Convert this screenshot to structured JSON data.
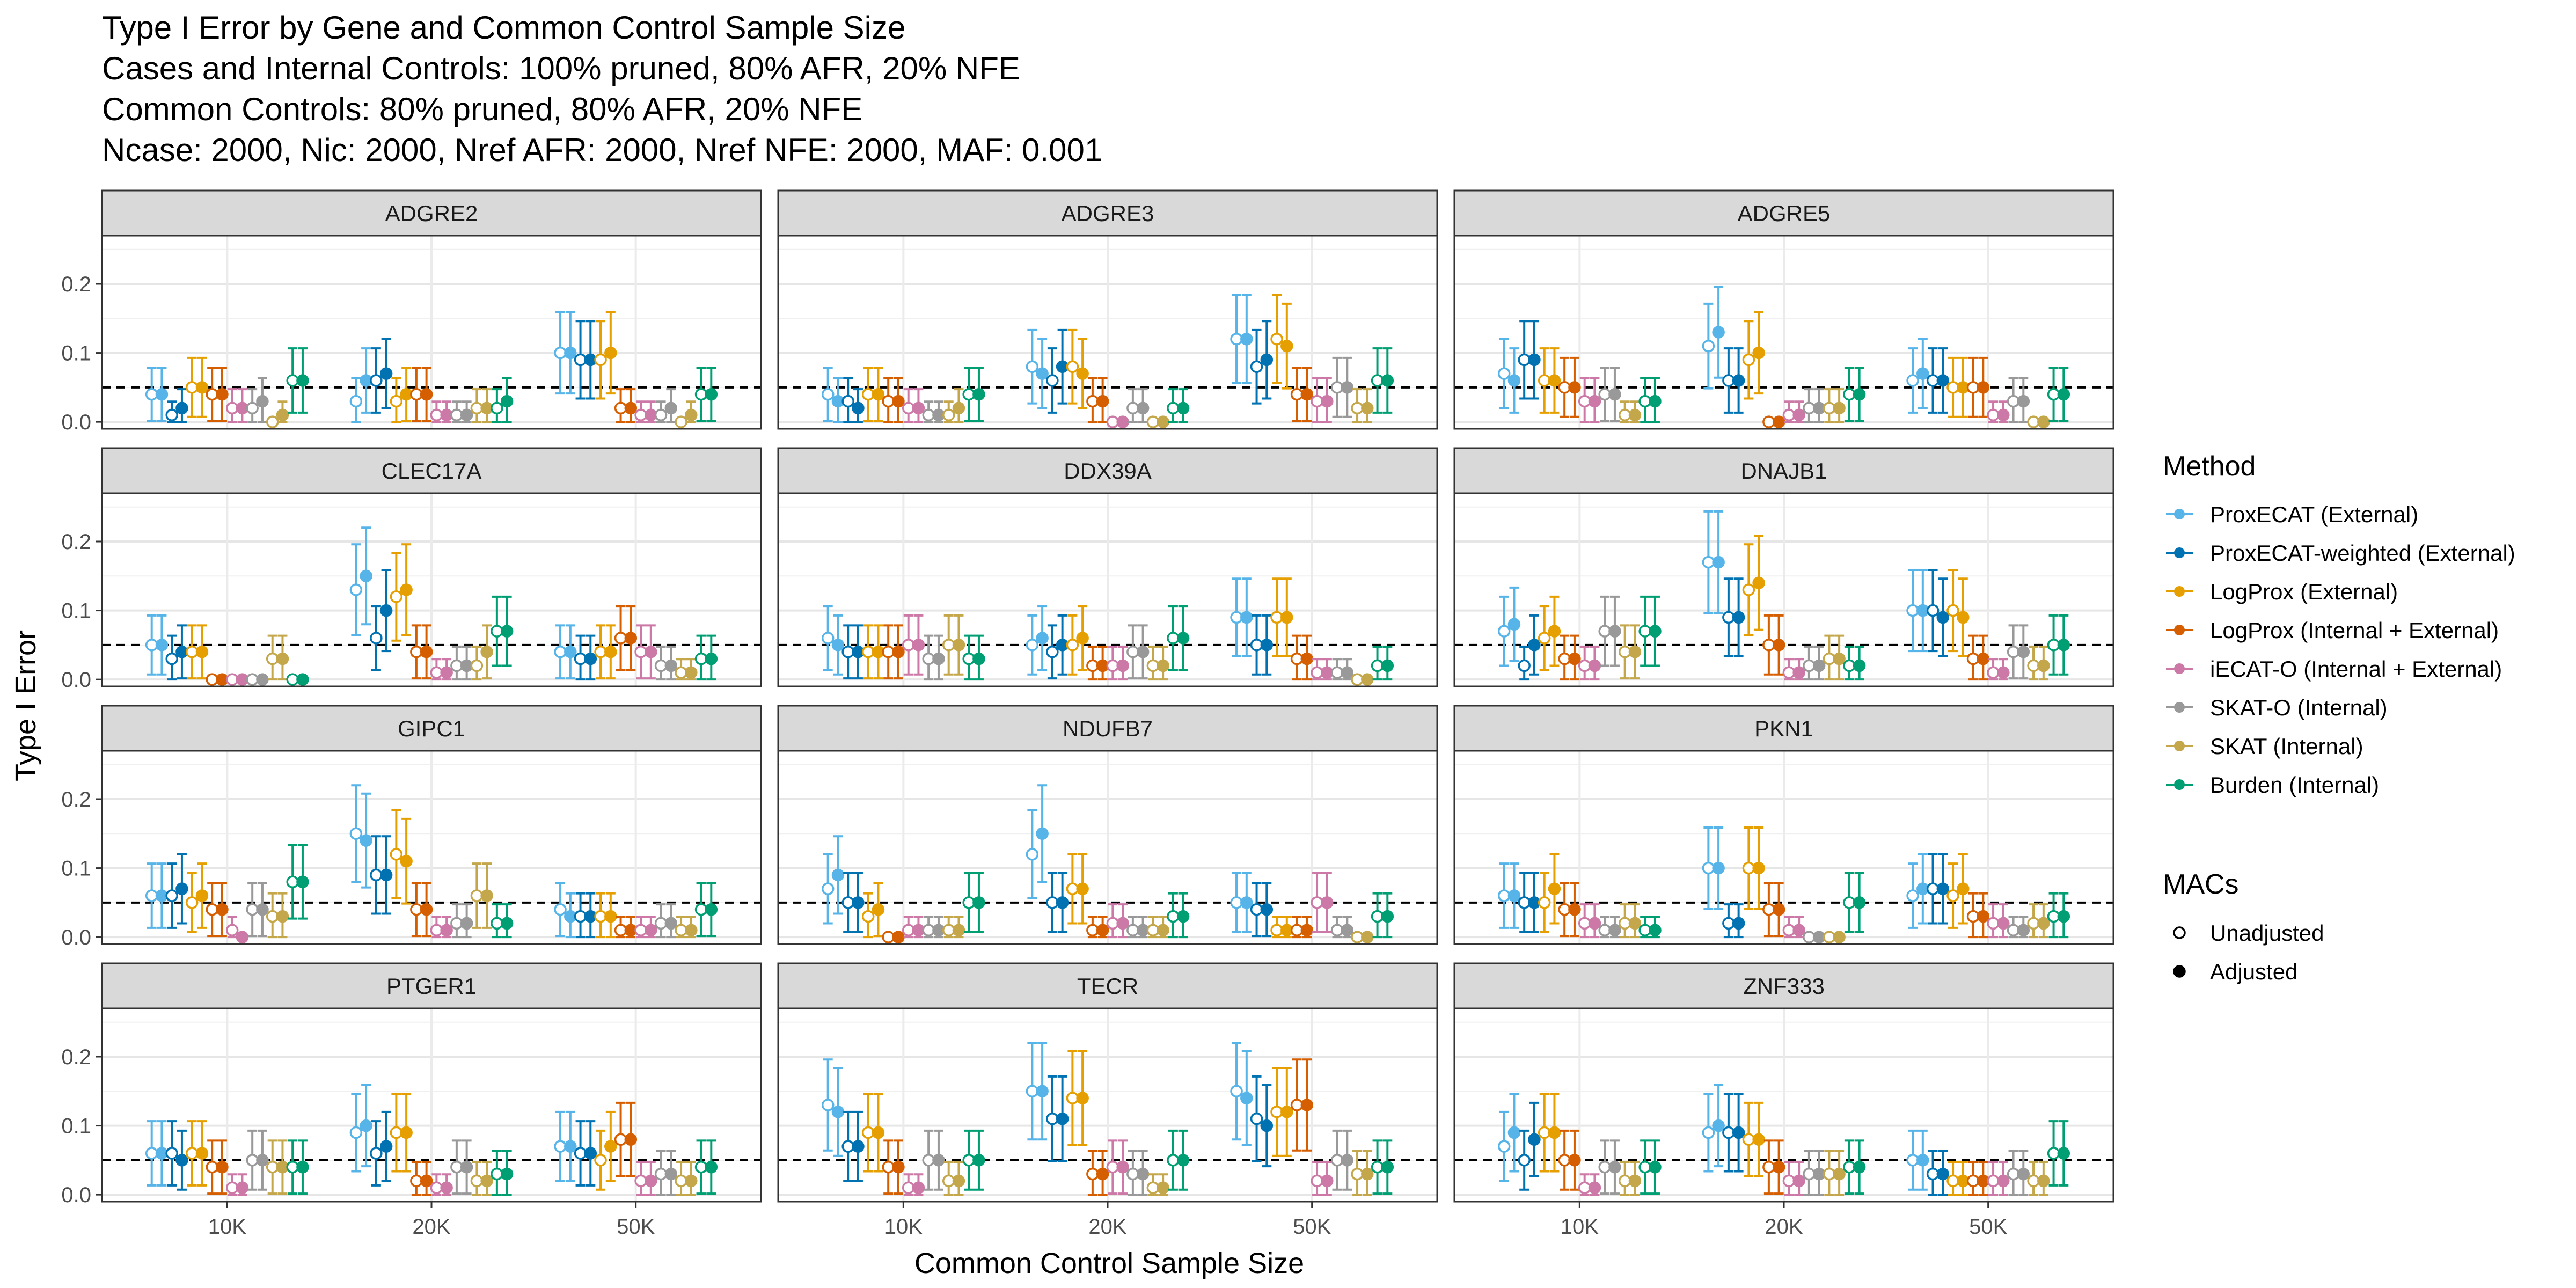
{
  "title_lines": [
    "Type I Error by Gene and Common Control Sample Size",
    "Cases and Internal Controls: 100% pruned, 80% AFR, 20% NFE",
    "Common Controls: 80% pruned, 80% AFR, 20% NFE",
    "Ncase: 2000, Nic: 2000, Nref AFR: 2000, Nref NFE: 2000, MAF: 0.001"
  ],
  "legend": {
    "method_title": "Method",
    "methods": [
      {
        "name": "ProxECAT (External)",
        "color": "#56B4E9"
      },
      {
        "name": "ProxECAT-weighted (External)",
        "color": "#0072B2"
      },
      {
        "name": "LogProx (External)",
        "color": "#E69F00"
      },
      {
        "name": "LogProx (Internal + External)",
        "color": "#D55E00"
      },
      {
        "name": "iECAT-O (Internal + External)",
        "color": "#CC79A7"
      },
      {
        "name": "SKAT-O (Internal)",
        "color": "#999999"
      },
      {
        "name": "SKAT (Internal)",
        "color": "#C4A64B"
      },
      {
        "name": "Burden (Internal)",
        "color": "#009E73"
      }
    ],
    "macs_title": "MACs",
    "macs": [
      {
        "name": "Unadjusted",
        "shape": "open-circle"
      },
      {
        "name": "Adjusted",
        "shape": "filled-circle"
      }
    ]
  },
  "chart_data": {
    "type": "scatter",
    "x_categories": [
      "10K",
      "20K",
      "50K"
    ],
    "xlabel": "Common Control Sample Size",
    "ylabel": "Type I Error",
    "ylim": [
      -0.01,
      0.27
    ],
    "yticks": [
      "0.0",
      "0.1",
      "0.2"
    ],
    "reference_line": 0.05,
    "grid": true,
    "legend_position": "right",
    "point_order": "per method: Unadjusted, Adjusted",
    "panels": [
      {
        "gene": "ADGRE2",
        "values": [
          [
            0.04,
            0.04,
            0.01,
            0.02,
            0.05,
            0.05,
            0.04,
            0.04,
            0.02,
            0.02,
            0.02,
            0.03,
            0.0,
            0.01,
            0.06,
            0.06
          ],
          [
            0.03,
            0.06,
            0.06,
            0.07,
            0.03,
            0.04,
            0.04,
            0.04,
            0.01,
            0.01,
            0.01,
            0.01,
            0.02,
            0.02,
            0.02,
            0.03
          ],
          [
            0.1,
            0.1,
            0.09,
            0.09,
            0.09,
            0.1,
            0.02,
            0.02,
            0.01,
            0.01,
            0.01,
            0.02,
            0.0,
            0.01,
            0.04,
            0.04
          ]
        ]
      },
      {
        "gene": "ADGRE3",
        "values": [
          [
            0.04,
            0.03,
            0.03,
            0.02,
            0.04,
            0.04,
            0.03,
            0.03,
            0.02,
            0.02,
            0.01,
            0.01,
            0.01,
            0.02,
            0.04,
            0.04
          ],
          [
            0.08,
            0.07,
            0.06,
            0.08,
            0.08,
            0.07,
            0.03,
            0.03,
            0.0,
            0.0,
            0.02,
            0.02,
            0.0,
            0.0,
            0.02,
            0.02
          ],
          [
            0.12,
            0.12,
            0.08,
            0.09,
            0.12,
            0.11,
            0.04,
            0.04,
            0.03,
            0.03,
            0.05,
            0.05,
            0.02,
            0.02,
            0.06,
            0.06
          ]
        ]
      },
      {
        "gene": "ADGRE5",
        "values": [
          [
            0.07,
            0.06,
            0.09,
            0.09,
            0.06,
            0.06,
            0.05,
            0.05,
            0.03,
            0.03,
            0.04,
            0.04,
            0.01,
            0.01,
            0.03,
            0.03
          ],
          [
            0.11,
            0.13,
            0.06,
            0.06,
            0.09,
            0.1,
            0.0,
            0.0,
            0.01,
            0.01,
            0.02,
            0.02,
            0.02,
            0.02,
            0.04,
            0.04
          ],
          [
            0.06,
            0.07,
            0.06,
            0.06,
            0.05,
            0.05,
            0.05,
            0.05,
            0.01,
            0.01,
            0.03,
            0.03,
            0.0,
            0.0,
            0.04,
            0.04
          ]
        ]
      },
      {
        "gene": "CLEC17A",
        "values": [
          [
            0.05,
            0.05,
            0.03,
            0.04,
            0.04,
            0.04,
            0.0,
            0.0,
            0.0,
            0.0,
            0.0,
            0.0,
            0.03,
            0.03,
            0.0,
            0.0
          ],
          [
            0.13,
            0.15,
            0.06,
            0.1,
            0.12,
            0.13,
            0.04,
            0.04,
            0.01,
            0.01,
            0.02,
            0.02,
            0.02,
            0.04,
            0.07,
            0.07
          ],
          [
            0.04,
            0.04,
            0.03,
            0.03,
            0.04,
            0.04,
            0.06,
            0.06,
            0.04,
            0.04,
            0.02,
            0.02,
            0.01,
            0.01,
            0.03,
            0.03
          ]
        ]
      },
      {
        "gene": "DDX39A",
        "values": [
          [
            0.06,
            0.05,
            0.04,
            0.04,
            0.04,
            0.04,
            0.04,
            0.04,
            0.05,
            0.05,
            0.03,
            0.03,
            0.05,
            0.05,
            0.03,
            0.03
          ],
          [
            0.05,
            0.06,
            0.04,
            0.05,
            0.05,
            0.06,
            0.02,
            0.02,
            0.02,
            0.02,
            0.04,
            0.04,
            0.02,
            0.02,
            0.06,
            0.06
          ],
          [
            0.09,
            0.09,
            0.05,
            0.05,
            0.09,
            0.09,
            0.03,
            0.03,
            0.01,
            0.01,
            0.01,
            0.01,
            0.0,
            0.0,
            0.02,
            0.02
          ]
        ]
      },
      {
        "gene": "DNAJB1",
        "values": [
          [
            0.07,
            0.08,
            0.02,
            0.05,
            0.06,
            0.07,
            0.03,
            0.03,
            0.02,
            0.02,
            0.07,
            0.07,
            0.04,
            0.04,
            0.07,
            0.07
          ],
          [
            0.17,
            0.17,
            0.09,
            0.09,
            0.13,
            0.14,
            0.05,
            0.05,
            0.01,
            0.01,
            0.02,
            0.02,
            0.03,
            0.03,
            0.02,
            0.02
          ],
          [
            0.1,
            0.1,
            0.1,
            0.09,
            0.1,
            0.09,
            0.03,
            0.03,
            0.01,
            0.01,
            0.04,
            0.04,
            0.02,
            0.02,
            0.05,
            0.05
          ]
        ]
      },
      {
        "gene": "GIPC1",
        "values": [
          [
            0.06,
            0.06,
            0.06,
            0.07,
            0.05,
            0.06,
            0.04,
            0.04,
            0.01,
            0.0,
            0.04,
            0.04,
            0.03,
            0.03,
            0.08,
            0.08
          ],
          [
            0.15,
            0.14,
            0.09,
            0.09,
            0.12,
            0.11,
            0.04,
            0.04,
            0.01,
            0.01,
            0.02,
            0.02,
            0.06,
            0.06,
            0.02,
            0.02
          ],
          [
            0.04,
            0.03,
            0.03,
            0.03,
            0.03,
            0.03,
            0.01,
            0.01,
            0.01,
            0.01,
            0.02,
            0.02,
            0.01,
            0.01,
            0.04,
            0.04
          ]
        ]
      },
      {
        "gene": "NDUFB7",
        "values": [
          [
            0.07,
            0.09,
            0.05,
            0.05,
            0.03,
            0.04,
            0.0,
            0.0,
            0.01,
            0.01,
            0.01,
            0.01,
            0.01,
            0.01,
            0.05,
            0.05
          ],
          [
            0.12,
            0.15,
            0.05,
            0.05,
            0.07,
            0.07,
            0.01,
            0.01,
            0.02,
            0.02,
            0.01,
            0.01,
            0.01,
            0.01,
            0.03,
            0.03
          ],
          [
            0.05,
            0.05,
            0.04,
            0.04,
            0.01,
            0.01,
            0.01,
            0.01,
            0.05,
            0.05,
            0.01,
            0.01,
            0.0,
            0.0,
            0.03,
            0.03
          ]
        ]
      },
      {
        "gene": "PKN1",
        "values": [
          [
            0.06,
            0.06,
            0.05,
            0.05,
            0.05,
            0.07,
            0.04,
            0.04,
            0.02,
            0.02,
            0.01,
            0.01,
            0.02,
            0.02,
            0.01,
            0.01
          ],
          [
            0.1,
            0.1,
            0.02,
            0.02,
            0.1,
            0.1,
            0.04,
            0.04,
            0.01,
            0.01,
            0.0,
            0.0,
            0.0,
            0.0,
            0.05,
            0.05
          ],
          [
            0.06,
            0.07,
            0.07,
            0.07,
            0.06,
            0.07,
            0.03,
            0.03,
            0.02,
            0.02,
            0.01,
            0.01,
            0.02,
            0.02,
            0.03,
            0.03
          ]
        ]
      },
      {
        "gene": "PTGER1",
        "values": [
          [
            0.06,
            0.06,
            0.06,
            0.05,
            0.06,
            0.06,
            0.04,
            0.04,
            0.01,
            0.01,
            0.05,
            0.05,
            0.04,
            0.04,
            0.04,
            0.04
          ],
          [
            0.09,
            0.1,
            0.06,
            0.07,
            0.09,
            0.09,
            0.02,
            0.02,
            0.01,
            0.01,
            0.04,
            0.04,
            0.02,
            0.02,
            0.03,
            0.03
          ],
          [
            0.07,
            0.07,
            0.06,
            0.06,
            0.05,
            0.07,
            0.08,
            0.08,
            0.02,
            0.02,
            0.03,
            0.03,
            0.02,
            0.02,
            0.04,
            0.04
          ]
        ]
      },
      {
        "gene": "TECR",
        "values": [
          [
            0.13,
            0.12,
            0.07,
            0.07,
            0.09,
            0.09,
            0.04,
            0.04,
            0.01,
            0.01,
            0.05,
            0.05,
            0.02,
            0.02,
            0.05,
            0.05
          ],
          [
            0.15,
            0.15,
            0.11,
            0.11,
            0.14,
            0.14,
            0.03,
            0.03,
            0.04,
            0.04,
            0.03,
            0.03,
            0.01,
            0.01,
            0.05,
            0.05
          ],
          [
            0.15,
            0.14,
            0.11,
            0.1,
            0.12,
            0.12,
            0.13,
            0.13,
            0.02,
            0.02,
            0.05,
            0.05,
            0.03,
            0.03,
            0.04,
            0.04
          ]
        ]
      },
      {
        "gene": "ZNF333",
        "values": [
          [
            0.07,
            0.09,
            0.05,
            0.08,
            0.09,
            0.09,
            0.05,
            0.05,
            0.01,
            0.01,
            0.04,
            0.04,
            0.02,
            0.02,
            0.04,
            0.04
          ],
          [
            0.09,
            0.1,
            0.09,
            0.09,
            0.08,
            0.08,
            0.04,
            0.04,
            0.02,
            0.02,
            0.03,
            0.03,
            0.03,
            0.03,
            0.04,
            0.04
          ],
          [
            0.05,
            0.05,
            0.03,
            0.03,
            0.02,
            0.02,
            0.02,
            0.02,
            0.02,
            0.02,
            0.03,
            0.03,
            0.02,
            0.02,
            0.06,
            0.06
          ]
        ]
      }
    ]
  }
}
